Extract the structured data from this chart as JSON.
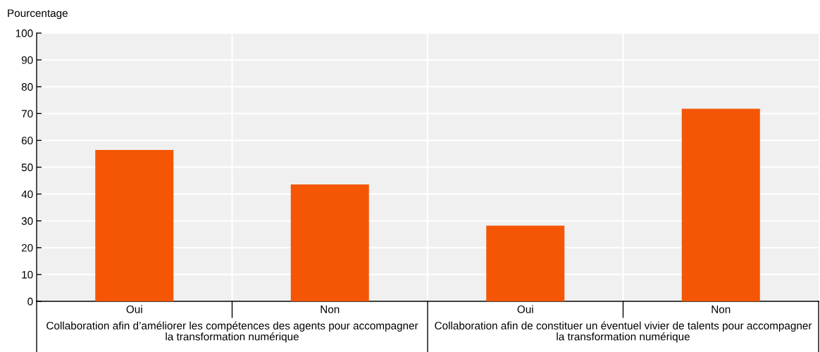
{
  "chart_data": {
    "type": "bar",
    "ylabel": "Pourcentage",
    "categories": [
      "Oui",
      "Non",
      "Oui",
      "Non"
    ],
    "values": [
      56.4,
      43.6,
      28.2,
      71.8
    ],
    "color": "#f45605",
    "ylim": [
      0,
      100
    ],
    "yticks": [
      0,
      10,
      20,
      30,
      40,
      50,
      60,
      70,
      80,
      90,
      100
    ],
    "grid": true,
    "annotations": [
      "Collaboration afin d’améliorer les compétences des agents pour accompagner\nla transformation numérique",
      "Collaboration afin de constituer un éventuel vivier de talents pour accompagner\nla transformation numérique"
    ]
  }
}
